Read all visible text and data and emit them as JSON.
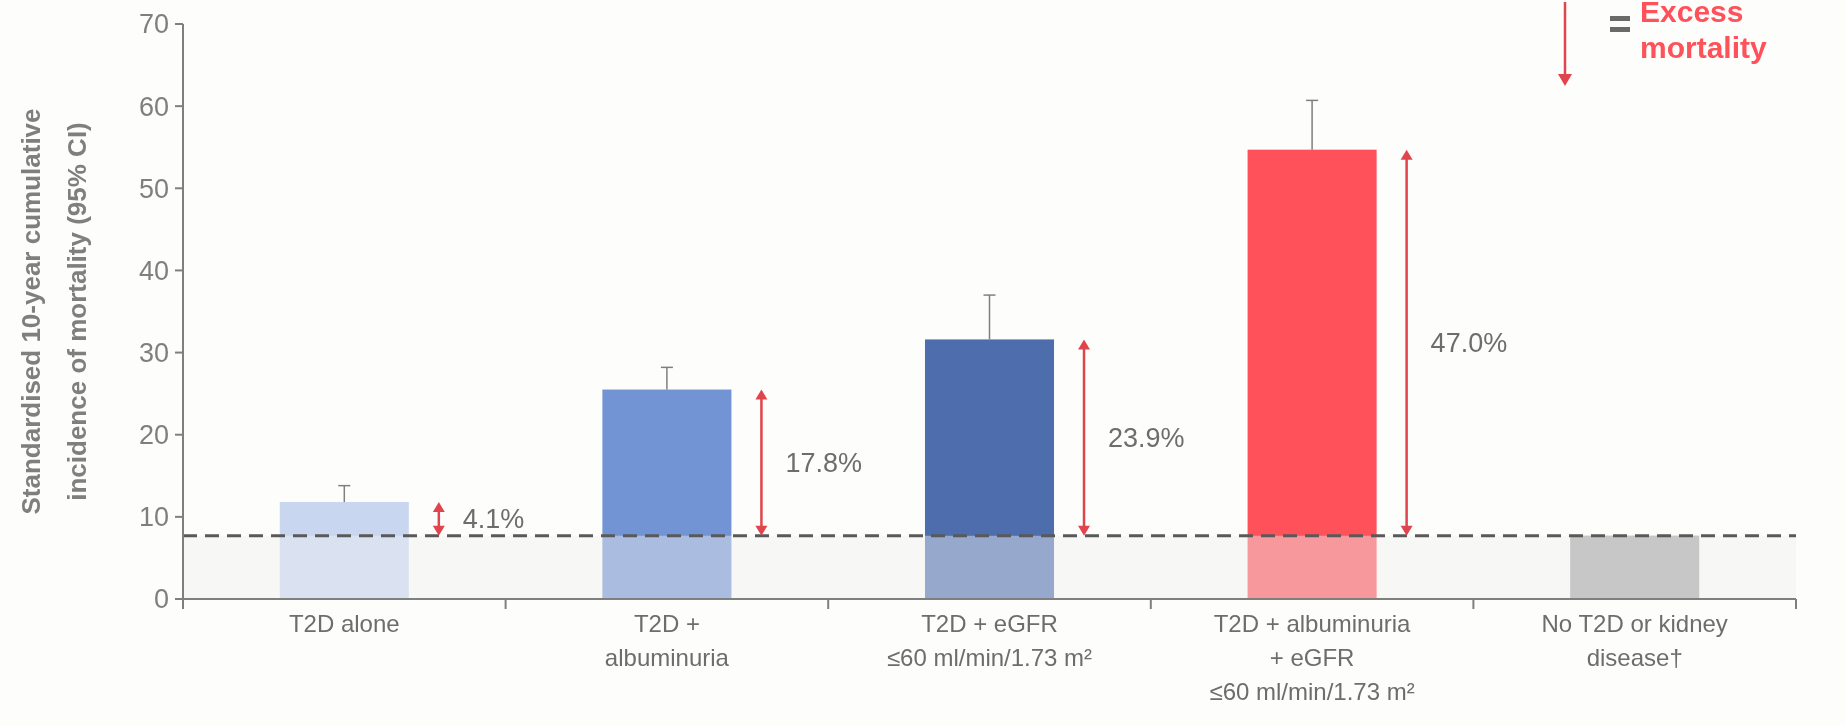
{
  "chart_data": {
    "type": "bar",
    "ylabel": "Standardised 10-year cumulative incidence of mortality (95% CI)",
    "categories": [
      "T2D alone",
      "T2D +\nalbuminuria",
      "T2D + eGFR\n≤60 ml/min/1.73 m²",
      "T2D + albuminuria\n+ eGFR\n≤60 ml/min/1.73 m²",
      "No T2D or kidney\ndisease†"
    ],
    "values": [
      11.8,
      25.5,
      31.6,
      54.7,
      7.7
    ],
    "colors": [
      "#c9d6f0",
      "#7294d4",
      "#4e6dad",
      "#fe5159",
      "#a6a6a6"
    ],
    "errors": [
      [
        11.8,
        13.8
      ],
      [
        25.5,
        28.2
      ],
      [
        31.6,
        37.0
      ],
      [
        54.7,
        60.7
      ],
      null
    ],
    "ylim": [
      0,
      70
    ],
    "yticks": [
      0,
      10,
      20,
      30,
      40,
      50,
      60,
      70
    ],
    "grid": false,
    "ref_lines": [
      {
        "axis": "y",
        "value": 7.7,
        "color": "#595959",
        "line_style": "dashed"
      }
    ],
    "bands": [
      {
        "axis": "y",
        "from": 0,
        "to": 7.7,
        "color": "#efefef"
      }
    ],
    "annotations": [
      "4.1%",
      "17.8%",
      "23.9%",
      "47.0%",
      "Excess mortality"
    ]
  }
}
